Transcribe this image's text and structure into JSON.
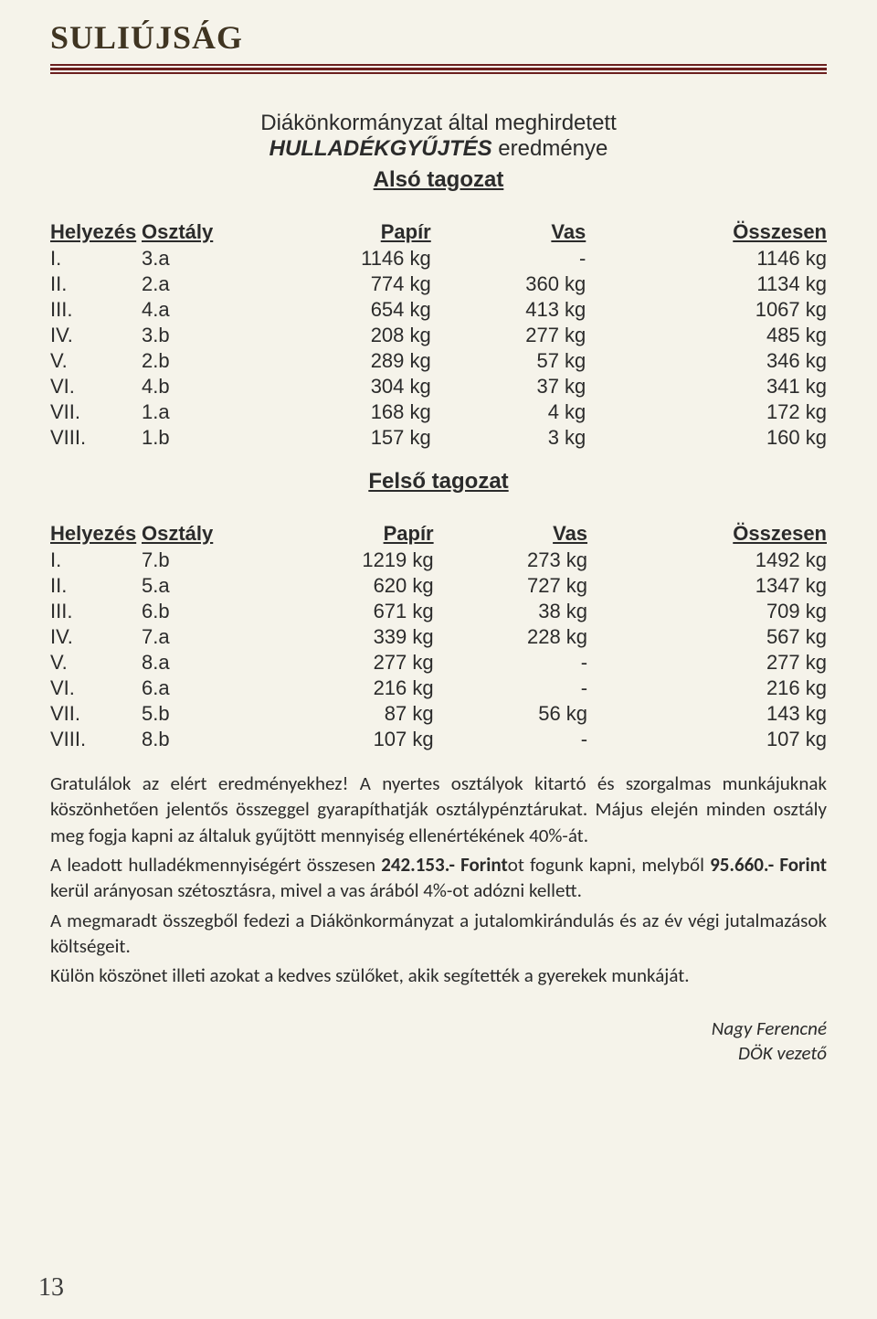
{
  "masthead": "SULIÚJSÁG",
  "title_line1": "Diákönkormányzat által meghirdetett",
  "title_line2_emph": "HULLADÉKGYŰJTÉS",
  "title_line2_rest": " eredménye",
  "section1_subtitle": "Alsó tagozat",
  "section2_subtitle": "Felső tagozat",
  "table_headers": {
    "rank": "Helyezés",
    "klass": "Osztály",
    "papir": "Papír",
    "vas": "Vas",
    "ossz": "Összesen"
  },
  "section1_rows": [
    {
      "rank": "I.",
      "klass": "3.a",
      "papir": "1146 kg",
      "vas": "-",
      "ossz": "1146 kg"
    },
    {
      "rank": "II.",
      "klass": "2.a",
      "papir": "774 kg",
      "vas": "360 kg",
      "ossz": "1134 kg"
    },
    {
      "rank": "III.",
      "klass": "4.a",
      "papir": "654 kg",
      "vas": "413 kg",
      "ossz": "1067 kg"
    },
    {
      "rank": "IV.",
      "klass": "3.b",
      "papir": "208 kg",
      "vas": "277 kg",
      "ossz": "485 kg"
    },
    {
      "rank": "V.",
      "klass": "2.b",
      "papir": "289 kg",
      "vas": "57 kg",
      "ossz": "346 kg"
    },
    {
      "rank": "VI.",
      "klass": "4.b",
      "papir": "304 kg",
      "vas": "37 kg",
      "ossz": "341 kg"
    },
    {
      "rank": "VII.",
      "klass": "1.a",
      "papir": "168 kg",
      "vas": "4 kg",
      "ossz": "172 kg"
    },
    {
      "rank": "VIII.",
      "klass": "1.b",
      "papir": "157 kg",
      "vas": "3 kg",
      "ossz": "160 kg"
    }
  ],
  "section2_rows": [
    {
      "rank": "I.",
      "klass": "7.b",
      "papir": "1219 kg",
      "vas": "273 kg",
      "ossz": "1492 kg"
    },
    {
      "rank": "II.",
      "klass": "5.a",
      "papir": "620 kg",
      "vas": "727 kg",
      "ossz": "1347 kg"
    },
    {
      "rank": "III.",
      "klass": "6.b",
      "papir": "671 kg",
      "vas": "38 kg",
      "ossz": "709 kg"
    },
    {
      "rank": "IV.",
      "klass": "7.a",
      "papir": "339 kg",
      "vas": "228 kg",
      "ossz": "567 kg"
    },
    {
      "rank": "V.",
      "klass": "8.a",
      "papir": "277 kg",
      "vas": "-",
      "ossz": "277 kg"
    },
    {
      "rank": "VI.",
      "klass": "6.a",
      "papir": "216 kg",
      "vas": "-",
      "ossz": "216 kg"
    },
    {
      "rank": "VII.",
      "klass": "5.b",
      "papir": "87 kg",
      "vas": "56 kg",
      "ossz": "143 kg"
    },
    {
      "rank": "VIII.",
      "klass": "8.b",
      "papir": "107 kg",
      "vas": "-",
      "ossz": "107 kg"
    }
  ],
  "para1_a": "Gratulálok az elért eredményekhez! A nyertes osztályok kitartó és szorgalmas munkájuknak köszönhetően jelentős összeggel gyarapíthatják osztálypénztárukat. Május elején minden osztály meg fogja kapni az általuk gyűjtött mennyiség ellenértékének 40%-át.",
  "para2_a": "A leadott hulladékmennyiségért összesen ",
  "para2_bold1": "242.153.- Forint",
  "para2_b": "ot fogunk kapni, melyből ",
  "para2_bold2": "95.660.- Forint",
  "para2_c": " kerül arányosan szétosztásra, mivel a vas árából 4%-ot adózni kellett.",
  "para3": "A megmaradt összegből fedezi a Diákönkormányzat a jutalomkirándulás és az év végi jutalmazások költségeit.",
  "para4": "Külön köszönet illeti azokat a kedves szülőket, akik segítették a gyerekek munkáját.",
  "sig_name": "Nagy Ferencné",
  "sig_role": "DÖK vezető",
  "page_number": "13",
  "colors": {
    "background": "#f5f3ea",
    "rule": "#6b1f1f",
    "masthead": "#403522",
    "text": "#2b2b2b"
  },
  "fonts": {
    "masthead_size_pt": 27,
    "title_size_pt": 18,
    "table_size_pt": 17,
    "body_size_pt": 16
  }
}
